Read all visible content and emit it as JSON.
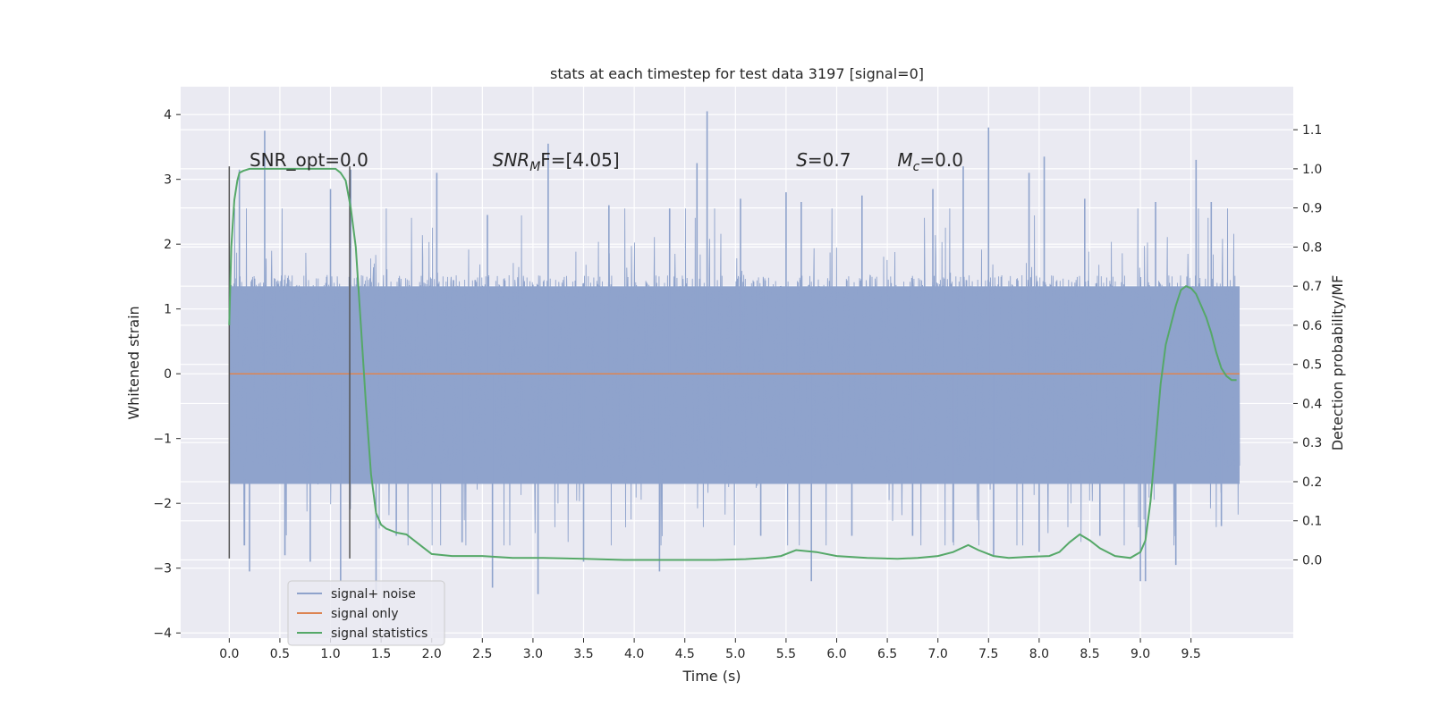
{
  "chart_data": {
    "type": "line",
    "title": "stats at each timestep for test data 3197 [signal=0]",
    "xlabel": "Time (s)",
    "ylabel": "Whitened strain",
    "y2label": "Detection probability/MF",
    "xlim": [
      -0.48,
      10.51
    ],
    "ylim": [
      -4.08,
      4.43
    ],
    "y2lim": [
      -0.2,
      1.21
    ],
    "xticks": [
      0.0,
      0.5,
      1.0,
      1.5,
      2.0,
      2.5,
      3.0,
      3.5,
      4.0,
      4.5,
      5.0,
      5.5,
      6.0,
      6.5,
      7.0,
      7.5,
      8.0,
      8.5,
      9.0,
      9.5
    ],
    "xtick_labels": [
      "0.0",
      "0.5",
      "1.0",
      "1.5",
      "2.0",
      "2.5",
      "3.0",
      "3.5",
      "4.0",
      "4.5",
      "5.0",
      "5.5",
      "6.0",
      "6.5",
      "7.0",
      "7.5",
      "8.0",
      "8.5",
      "9.0",
      "9.5"
    ],
    "yticks": [
      -4,
      -3,
      -2,
      -1,
      0,
      1,
      2,
      3,
      4
    ],
    "ytick_labels": [
      "−4",
      "−3",
      "−2",
      "−1",
      "0",
      "1",
      "2",
      "3",
      "4"
    ],
    "y2ticks": [
      0.0,
      0.1,
      0.2,
      0.3,
      0.4,
      0.5,
      0.6,
      0.7,
      0.8,
      0.9,
      1.0,
      1.1
    ],
    "y2tick_labels": [
      "0.0",
      "0.1",
      "0.2",
      "0.3",
      "0.4",
      "0.5",
      "0.6",
      "0.7",
      "0.8",
      "0.9",
      "1.0",
      "1.1"
    ],
    "grid": true,
    "legend_position": "lower-left",
    "annotations": [
      {
        "x": 0.2,
        "y": 3.2,
        "parts": [
          {
            "t": "SNR_opt=0.0"
          }
        ]
      },
      {
        "x": 2.6,
        "y": 3.2,
        "parts": [
          {
            "t": "SNR",
            "i": true
          },
          {
            "t": "M",
            "i": true,
            "sub": true
          },
          {
            "t": "F=[4.05]"
          }
        ]
      },
      {
        "x": 5.6,
        "y": 3.2,
        "parts": [
          {
            "t": "S",
            "i": true
          },
          {
            "t": "=0.7"
          }
        ]
      },
      {
        "x": 6.6,
        "y": 3.2,
        "parts": [
          {
            "t": "M",
            "i": true
          },
          {
            "t": "c",
            "i": true,
            "sub": true
          },
          {
            "t": "=0.0"
          }
        ]
      }
    ],
    "vlines": [
      {
        "x": 0.0,
        "ymin": -2.85,
        "ymax": 3.2
      },
      {
        "x": 1.19,
        "ymin": -2.85,
        "ymax": 3.2
      }
    ],
    "series": [
      {
        "name": "signal+ noise",
        "color": "#8fa3cc",
        "time_range": [
          0.0,
          9.98
        ],
        "core_band": [
          -1.7,
          1.35
        ],
        "peaks_up": [
          [
            0.35,
            3.75
          ],
          [
            0.1,
            3.15
          ],
          [
            1.2,
            3.15
          ],
          [
            1.0,
            2.85
          ],
          [
            3.15,
            3.55
          ],
          [
            2.05,
            3.1
          ],
          [
            2.55,
            2.45
          ],
          [
            3.75,
            2.6
          ],
          [
            4.35,
            2.55
          ],
          [
            4.72,
            4.05
          ],
          [
            4.62,
            3.25
          ],
          [
            5.05,
            2.7
          ],
          [
            5.5,
            2.8
          ],
          [
            5.65,
            2.65
          ],
          [
            6.25,
            2.75
          ],
          [
            6.95,
            2.85
          ],
          [
            7.25,
            3.2
          ],
          [
            7.5,
            3.8
          ],
          [
            7.9,
            3.1
          ],
          [
            8.05,
            3.35
          ],
          [
            8.45,
            2.7
          ],
          [
            9.15,
            2.65
          ],
          [
            9.55,
            3.3
          ],
          [
            9.7,
            2.65
          ]
        ],
        "peaks_down": [
          [
            0.2,
            -3.05
          ],
          [
            0.55,
            -2.8
          ],
          [
            0.8,
            -2.9
          ],
          [
            1.1,
            -3.2
          ],
          [
            1.45,
            -3.35
          ],
          [
            1.65,
            -2.5
          ],
          [
            2.3,
            -2.6
          ],
          [
            2.6,
            -3.3
          ],
          [
            3.05,
            -3.4
          ],
          [
            3.5,
            -2.9
          ],
          [
            4.25,
            -3.05
          ],
          [
            5.25,
            -2.5
          ],
          [
            5.75,
            -3.2
          ],
          [
            6.15,
            -2.5
          ],
          [
            6.75,
            -2.5
          ],
          [
            7.15,
            -2.6
          ],
          [
            7.55,
            -2.8
          ],
          [
            8.0,
            -2.75
          ],
          [
            8.6,
            -2.5
          ],
          [
            9.0,
            -3.2
          ],
          [
            9.05,
            -3.2
          ],
          [
            9.35,
            -2.95
          ],
          [
            9.8,
            -2.35
          ]
        ]
      },
      {
        "name": "signal only",
        "color": "#dd8452",
        "x": [
          0.0,
          9.98
        ],
        "y": [
          0.0,
          0.0
        ]
      },
      {
        "name": "signal statistics",
        "color": "#55a868",
        "axis": "right",
        "x": [
          0.0,
          0.02,
          0.05,
          0.08,
          0.1,
          0.14,
          0.2,
          0.3,
          0.4,
          0.5,
          0.6,
          0.7,
          0.8,
          0.9,
          1.0,
          1.05,
          1.1,
          1.15,
          1.2,
          1.25,
          1.3,
          1.35,
          1.4,
          1.45,
          1.5,
          1.55,
          1.65,
          1.75,
          1.9,
          2.0,
          2.2,
          2.5,
          2.8,
          3.1,
          3.5,
          3.9,
          4.2,
          4.5,
          4.8,
          5.1,
          5.3,
          5.45,
          5.6,
          5.8,
          6.0,
          6.3,
          6.6,
          6.8,
          7.0,
          7.15,
          7.3,
          7.4,
          7.55,
          7.7,
          7.9,
          8.1,
          8.2,
          8.3,
          8.4,
          8.5,
          8.6,
          8.75,
          8.9,
          9.0,
          9.05,
          9.1,
          9.15,
          9.2,
          9.25,
          9.3,
          9.35,
          9.4,
          9.45,
          9.5,
          9.55,
          9.6,
          9.65,
          9.7,
          9.75,
          9.8,
          9.85,
          9.9,
          9.95
        ],
        "y": [
          0.6,
          0.8,
          0.92,
          0.97,
          0.99,
          0.995,
          1.0,
          1.0,
          1.0,
          1.0,
          1.0,
          1.0,
          1.0,
          1.0,
          1.0,
          1.0,
          0.99,
          0.97,
          0.9,
          0.8,
          0.6,
          0.4,
          0.22,
          0.12,
          0.09,
          0.08,
          0.07,
          0.065,
          0.035,
          0.015,
          0.01,
          0.01,
          0.005,
          0.005,
          0.003,
          0.0,
          0.0,
          0.0,
          0.0,
          0.002,
          0.005,
          0.01,
          0.025,
          0.02,
          0.01,
          0.005,
          0.003,
          0.005,
          0.01,
          0.02,
          0.038,
          0.025,
          0.01,
          0.005,
          0.008,
          0.01,
          0.02,
          0.045,
          0.065,
          0.05,
          0.03,
          0.01,
          0.005,
          0.02,
          0.05,
          0.15,
          0.3,
          0.45,
          0.55,
          0.6,
          0.65,
          0.69,
          0.7,
          0.695,
          0.68,
          0.65,
          0.62,
          0.58,
          0.53,
          0.49,
          0.47,
          0.46,
          0.46
        ]
      }
    ]
  }
}
